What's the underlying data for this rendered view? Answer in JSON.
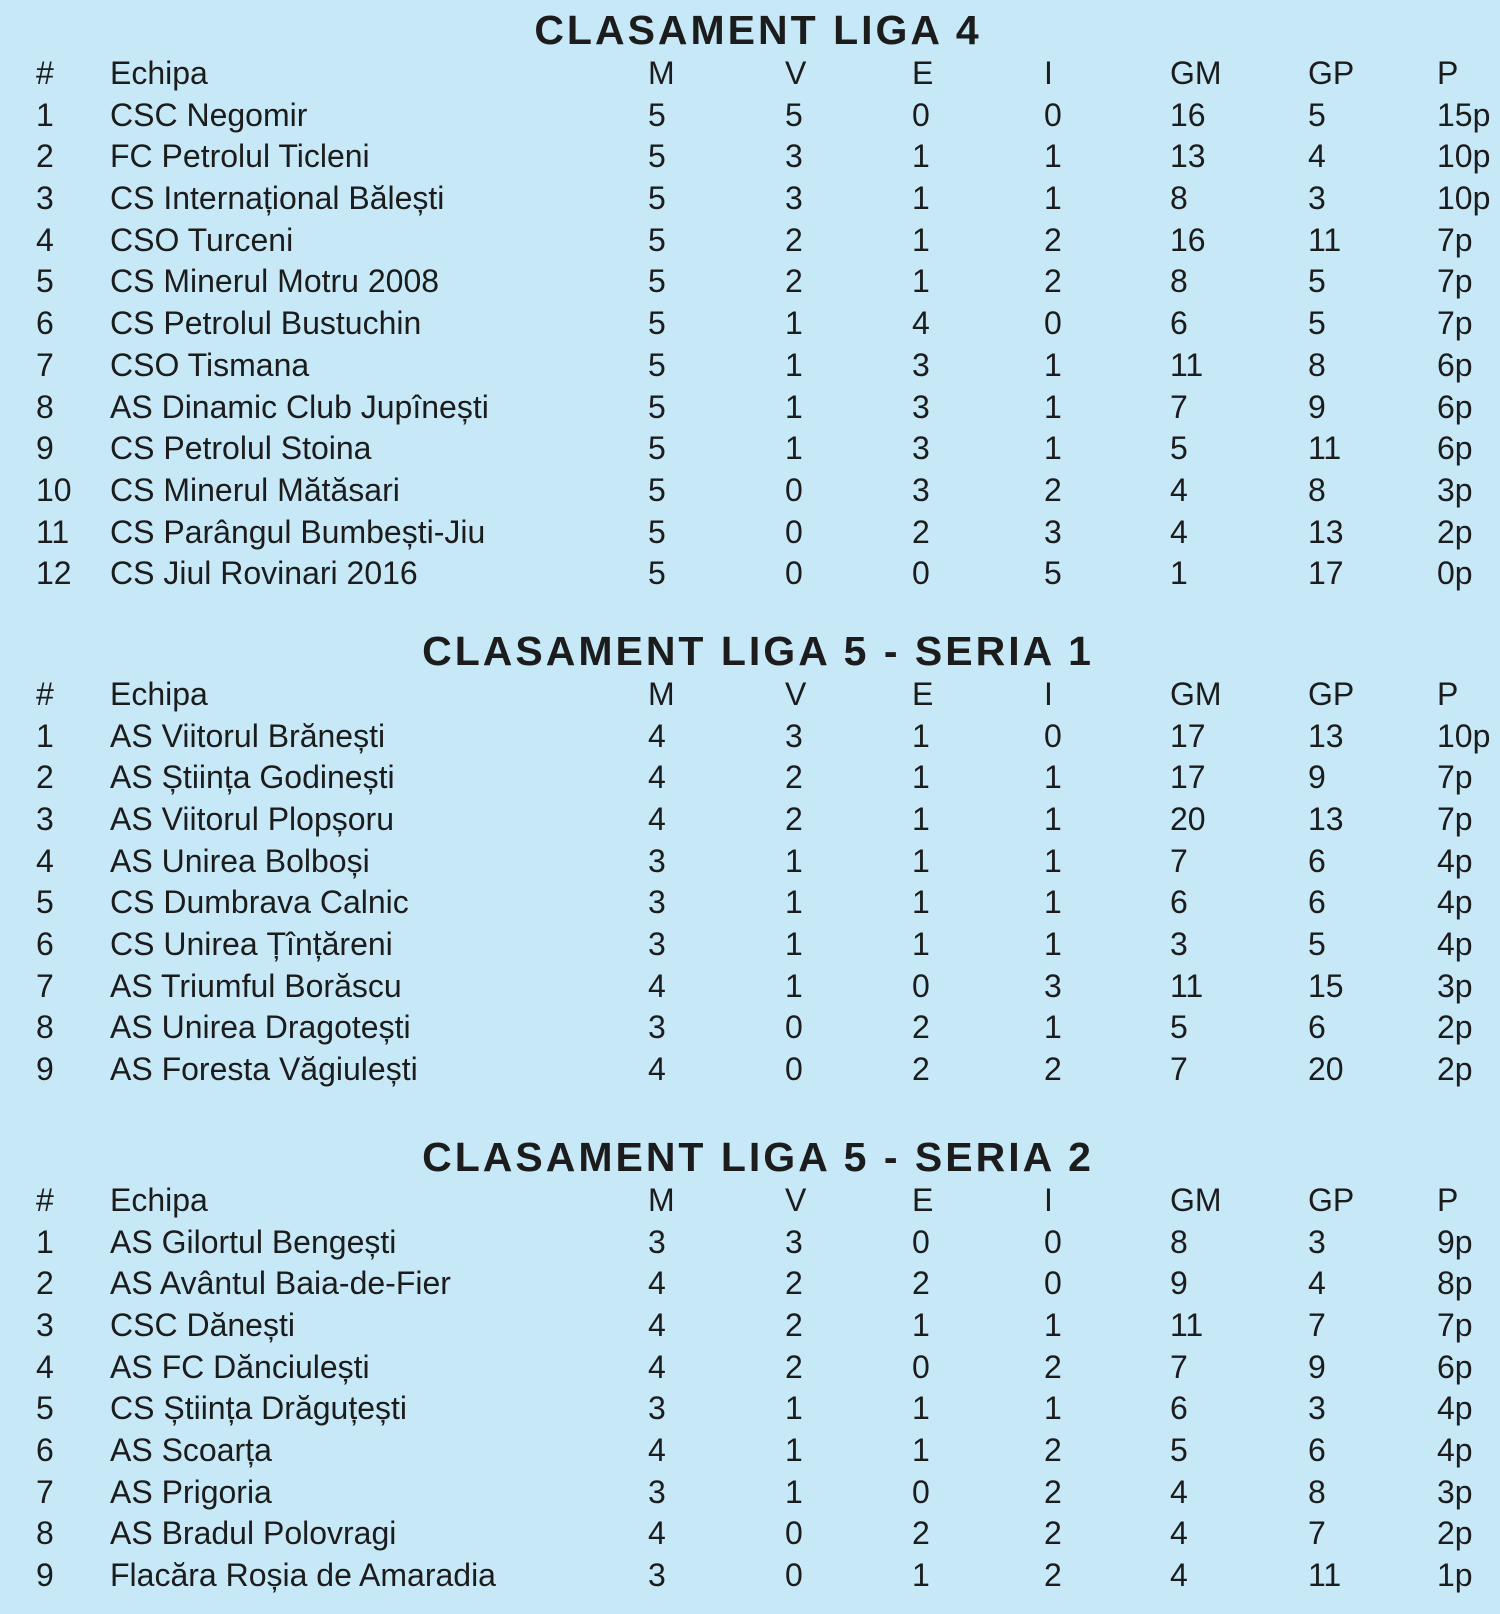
{
  "page": {
    "background_color": "#c7e8f7",
    "text_color": "#1c1c1c"
  },
  "columns": {
    "rank": "#",
    "team": "Echipa",
    "m": "M",
    "v": "V",
    "e": "E",
    "i": "I",
    "gm": "GM",
    "gp": "GP",
    "p": "P"
  },
  "tables": [
    {
      "title": "CLASAMENT LIGA 4",
      "rows": [
        {
          "rank": "1",
          "team": "CSC Negomir",
          "m": "5",
          "v": "5",
          "e": "0",
          "i": "0",
          "gm": "16",
          "gp": "5",
          "p": "15p"
        },
        {
          "rank": "2",
          "team": "FC Petrolul Ticleni",
          "m": "5",
          "v": "3",
          "e": "1",
          "i": "1",
          "gm": "13",
          "gp": "4",
          "p": "10p"
        },
        {
          "rank": "3",
          "team": "CS Internațional Bălești",
          "m": "5",
          "v": "3",
          "e": "1",
          "i": "1",
          "gm": "8",
          "gp": "3",
          "p": "10p"
        },
        {
          "rank": "4",
          "team": "CSO Turceni",
          "m": "5",
          "v": "2",
          "e": "1",
          "i": "2",
          "gm": "16",
          "gp": "11",
          "p": "7p"
        },
        {
          "rank": "5",
          "team": "CS Minerul Motru 2008",
          "m": "5",
          "v": "2",
          "e": "1",
          "i": "2",
          "gm": "8",
          "gp": "5",
          "p": "7p"
        },
        {
          "rank": "6",
          "team": "CS Petrolul Bustuchin",
          "m": "5",
          "v": "1",
          "e": "4",
          "i": "0",
          "gm": "6",
          "gp": "5",
          "p": "7p"
        },
        {
          "rank": "7",
          "team": "CSO Tismana",
          "m": "5",
          "v": "1",
          "e": "3",
          "i": "1",
          "gm": "11",
          "gp": "8",
          "p": "6p"
        },
        {
          "rank": "8",
          "team": "AS Dinamic Club Jupînești",
          "m": "5",
          "v": "1",
          "e": "3",
          "i": "1",
          "gm": "7",
          "gp": "9",
          "p": "6p"
        },
        {
          "rank": "9",
          "team": "CS Petrolul Stoina",
          "m": "5",
          "v": "1",
          "e": "3",
          "i": "1",
          "gm": "5",
          "gp": "11",
          "p": "6p"
        },
        {
          "rank": "10",
          "team": "CS Minerul Mătăsari",
          "m": "5",
          "v": "0",
          "e": "3",
          "i": "2",
          "gm": "4",
          "gp": "8",
          "p": "3p"
        },
        {
          "rank": "11",
          "team": "CS Parângul Bumbești-Jiu",
          "m": "5",
          "v": "0",
          "e": "2",
          "i": "3",
          "gm": "4",
          "gp": "13",
          "p": "2p"
        },
        {
          "rank": "12",
          "team": "CS Jiul Rovinari 2016",
          "m": "5",
          "v": "0",
          "e": "0",
          "i": "5",
          "gm": "1",
          "gp": "17",
          "p": "0p"
        }
      ]
    },
    {
      "title": "CLASAMENT LIGA 5 - SERIA 1",
      "rows": [
        {
          "rank": "1",
          "team": "AS Viitorul Brănești",
          "m": "4",
          "v": "3",
          "e": "1",
          "i": "0",
          "gm": "17",
          "gp": "13",
          "p": "10p"
        },
        {
          "rank": "2",
          "team": "AS Știința Godinești",
          "m": "4",
          "v": "2",
          "e": "1",
          "i": "1",
          "gm": "17",
          "gp": "9",
          "p": "7p"
        },
        {
          "rank": "3",
          "team": "AS Viitorul Plopșoru",
          "m": "4",
          "v": "2",
          "e": "1",
          "i": "1",
          "gm": "20",
          "gp": "13",
          "p": "7p"
        },
        {
          "rank": "4",
          "team": "AS Unirea Bolboși",
          "m": "3",
          "v": "1",
          "e": "1",
          "i": "1",
          "gm": "7",
          "gp": "6",
          "p": "4p"
        },
        {
          "rank": "5",
          "team": "CS Dumbrava Calnic",
          "m": "3",
          "v": "1",
          "e": "1",
          "i": "1",
          "gm": "6",
          "gp": "6",
          "p": "4p"
        },
        {
          "rank": "6",
          "team": "CS Unirea Țînțăreni",
          "m": "3",
          "v": "1",
          "e": "1",
          "i": "1",
          "gm": "3",
          "gp": "5",
          "p": "4p"
        },
        {
          "rank": "7",
          "team": "AS Triumful Borăscu",
          "m": "4",
          "v": "1",
          "e": "0",
          "i": "3",
          "gm": "11",
          "gp": "15",
          "p": "3p"
        },
        {
          "rank": "8",
          "team": "AS Unirea Dragotești",
          "m": "3",
          "v": "0",
          "e": "2",
          "i": "1",
          "gm": "5",
          "gp": "6",
          "p": "2p"
        },
        {
          "rank": "9",
          "team": "AS Foresta Văgiulești",
          "m": "4",
          "v": "0",
          "e": "2",
          "i": "2",
          "gm": "7",
          "gp": "20",
          "p": "2p"
        }
      ]
    },
    {
      "title": "CLASAMENT LIGA 5 - SERIA 2",
      "rows": [
        {
          "rank": "1",
          "team": "AS Gilortul Bengești",
          "m": "3",
          "v": "3",
          "e": "0",
          "i": "0",
          "gm": "8",
          "gp": "3",
          "p": "9p"
        },
        {
          "rank": "2",
          "team": "AS Avântul Baia-de-Fier",
          "m": "4",
          "v": "2",
          "e": "2",
          "i": "0",
          "gm": "9",
          "gp": "4",
          "p": "8p"
        },
        {
          "rank": "3",
          "team": "CSC Dănești",
          "m": "4",
          "v": "2",
          "e": "1",
          "i": "1",
          "gm": "11",
          "gp": "7",
          "p": "7p"
        },
        {
          "rank": "4",
          "team": "AS FC Dănciulești",
          "m": "4",
          "v": "2",
          "e": "0",
          "i": "2",
          "gm": "7",
          "gp": "9",
          "p": "6p"
        },
        {
          "rank": "5",
          "team": "CS Știința Drăguțești",
          "m": "3",
          "v": "1",
          "e": "1",
          "i": "1",
          "gm": "6",
          "gp": "3",
          "p": "4p"
        },
        {
          "rank": "6",
          "team": "AS Scoarța",
          "m": "4",
          "v": "1",
          "e": "1",
          "i": "2",
          "gm": "5",
          "gp": "6",
          "p": "4p"
        },
        {
          "rank": "7",
          "team": "AS Prigoria",
          "m": "3",
          "v": "1",
          "e": "0",
          "i": "2",
          "gm": "4",
          "gp": "8",
          "p": "3p"
        },
        {
          "rank": "8",
          "team": "AS Bradul Polovragi",
          "m": "4",
          "v": "0",
          "e": "2",
          "i": "2",
          "gm": "4",
          "gp": "7",
          "p": "2p"
        },
        {
          "rank": "9",
          "team": "Flacăra Roșia de Amaradia",
          "m": "3",
          "v": "0",
          "e": "1",
          "i": "2",
          "gm": "4",
          "gp": "11",
          "p": "1p"
        }
      ]
    }
  ]
}
